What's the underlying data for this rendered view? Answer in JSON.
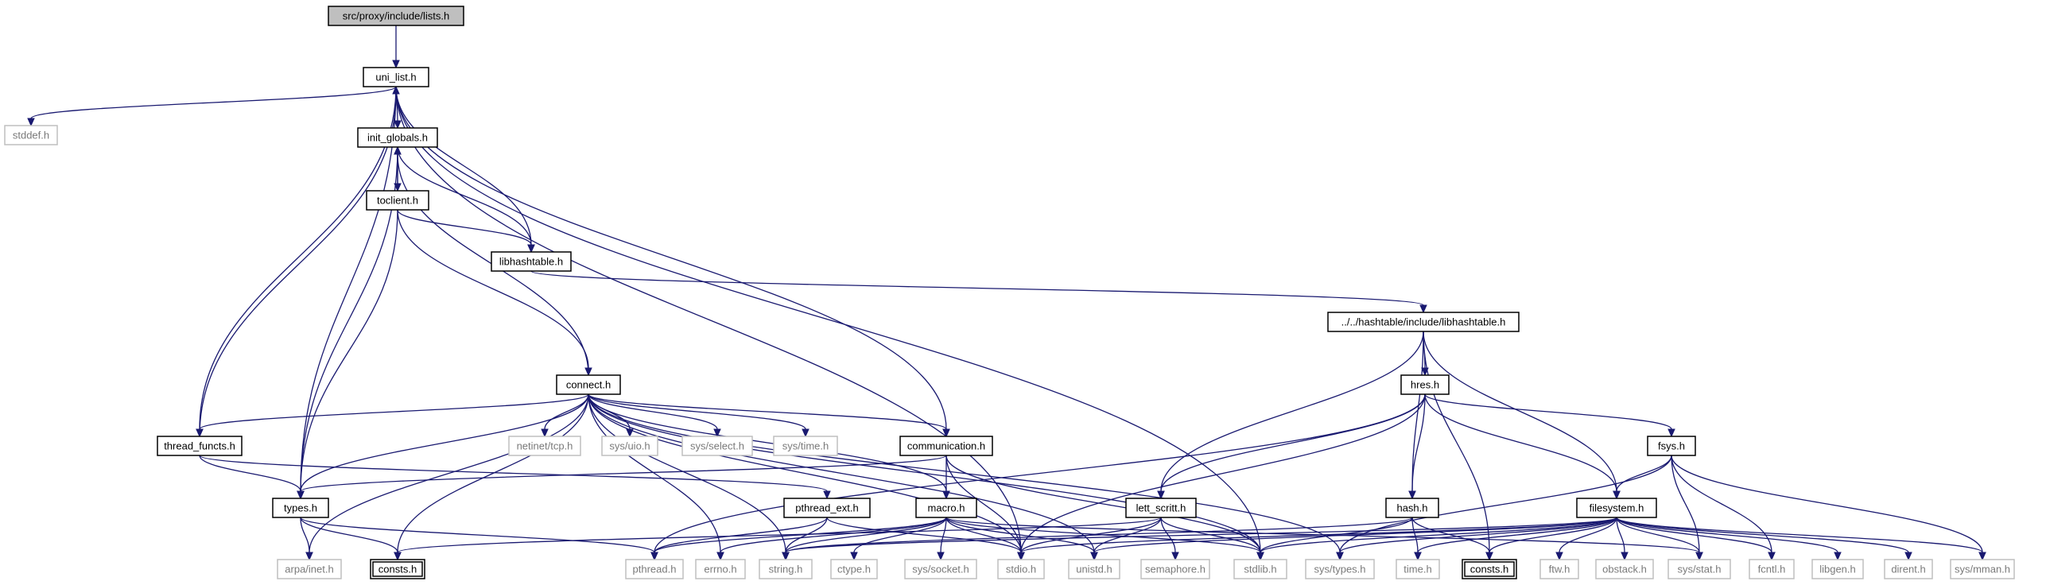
{
  "title": "src/proxy/include/lists.h",
  "colors": {
    "edge": "#191970",
    "root_fill": "#bfbfbf",
    "system_border": "#bfbfbf",
    "system_text": "#7a7a7a"
  },
  "nodes": [
    {
      "id": "lists",
      "label": "src/proxy/include/lists.h",
      "kind": "root"
    },
    {
      "id": "uni_list",
      "label": "uni_list.h",
      "kind": "doc"
    },
    {
      "id": "stddef",
      "label": "stddef.h",
      "kind": "sys"
    },
    {
      "id": "init_globals",
      "label": "init_globals.h",
      "kind": "doc"
    },
    {
      "id": "toclient",
      "label": "toclient.h",
      "kind": "doc"
    },
    {
      "id": "libhashtable",
      "label": "libhashtable.h",
      "kind": "doc"
    },
    {
      "id": "libhashtable_full",
      "label": "../../hashtable/include/libhashtable.h",
      "kind": "doc"
    },
    {
      "id": "connect",
      "label": "connect.h",
      "kind": "doc"
    },
    {
      "id": "netinet_tcp",
      "label": "netinet/tcp.h",
      "kind": "sys"
    },
    {
      "id": "sys_uio",
      "label": "sys/uio.h",
      "kind": "sys"
    },
    {
      "id": "sys_select",
      "label": "sys/select.h",
      "kind": "sys"
    },
    {
      "id": "sys_time",
      "label": "sys/time.h",
      "kind": "sys"
    },
    {
      "id": "communication",
      "label": "communication.h",
      "kind": "doc"
    },
    {
      "id": "thread_functs",
      "label": "thread_functs.h",
      "kind": "doc"
    },
    {
      "id": "types",
      "label": "types.h",
      "kind": "doc"
    },
    {
      "id": "pthread_ext",
      "label": "pthread_ext.h",
      "kind": "doc"
    },
    {
      "id": "macro",
      "label": "macro.h",
      "kind": "doc"
    },
    {
      "id": "lett_scritt",
      "label": "lett_scritt.h",
      "kind": "doc"
    },
    {
      "id": "hres",
      "label": "hres.h",
      "kind": "doc"
    },
    {
      "id": "hash",
      "label": "hash.h",
      "kind": "doc"
    },
    {
      "id": "fsys",
      "label": "fsys.h",
      "kind": "doc"
    },
    {
      "id": "filesystem",
      "label": "filesystem.h",
      "kind": "doc"
    },
    {
      "id": "arpa_inet",
      "label": "arpa/inet.h",
      "kind": "sys"
    },
    {
      "id": "consts_a",
      "label": "consts.h",
      "kind": "dbl"
    },
    {
      "id": "pthread",
      "label": "pthread.h",
      "kind": "sys"
    },
    {
      "id": "errno",
      "label": "errno.h",
      "kind": "sys"
    },
    {
      "id": "string",
      "label": "string.h",
      "kind": "sys"
    },
    {
      "id": "ctype",
      "label": "ctype.h",
      "kind": "sys"
    },
    {
      "id": "sys_socket",
      "label": "sys/socket.h",
      "kind": "sys"
    },
    {
      "id": "stdio",
      "label": "stdio.h",
      "kind": "sys"
    },
    {
      "id": "unistd",
      "label": "unistd.h",
      "kind": "sys"
    },
    {
      "id": "semaphore",
      "label": "semaphore.h",
      "kind": "sys"
    },
    {
      "id": "stdlib",
      "label": "stdlib.h",
      "kind": "sys"
    },
    {
      "id": "sys_types",
      "label": "sys/types.h",
      "kind": "sys"
    },
    {
      "id": "time",
      "label": "time.h",
      "kind": "sys"
    },
    {
      "id": "consts_b",
      "label": "consts.h",
      "kind": "dbl"
    },
    {
      "id": "ftw",
      "label": "ftw.h",
      "kind": "sys"
    },
    {
      "id": "obstack",
      "label": "obstack.h",
      "kind": "sys"
    },
    {
      "id": "sys_stat",
      "label": "sys/stat.h",
      "kind": "sys"
    },
    {
      "id": "fcntl",
      "label": "fcntl.h",
      "kind": "sys"
    },
    {
      "id": "libgen",
      "label": "libgen.h",
      "kind": "sys"
    },
    {
      "id": "dirent",
      "label": "dirent.h",
      "kind": "sys"
    },
    {
      "id": "sys_mman",
      "label": "sys/mman.h",
      "kind": "sys"
    }
  ],
  "edges": [
    [
      "lists",
      "uni_list"
    ],
    [
      "uni_list",
      "stddef"
    ],
    [
      "uni_list",
      "init_globals"
    ],
    [
      "uni_list",
      "libhashtable"
    ],
    [
      "uni_list",
      "thread_functs"
    ],
    [
      "uni_list",
      "types"
    ],
    [
      "uni_list",
      "communication"
    ],
    [
      "uni_list",
      "stdio"
    ],
    [
      "uni_list",
      "stdlib"
    ],
    [
      "init_globals",
      "toclient"
    ],
    [
      "init_globals",
      "libhashtable"
    ],
    [
      "init_globals",
      "types"
    ],
    [
      "toclient",
      "init_globals"
    ],
    [
      "toclient",
      "libhashtable"
    ],
    [
      "toclient",
      "types"
    ],
    [
      "toclient",
      "connect"
    ],
    [
      "libhashtable",
      "libhashtable_full"
    ],
    [
      "libhashtable_full",
      "hres"
    ],
    [
      "libhashtable_full",
      "lett_scritt"
    ],
    [
      "libhashtable_full",
      "hash"
    ],
    [
      "libhashtable_full",
      "consts_b"
    ],
    [
      "libhashtable_full",
      "filesystem"
    ],
    [
      "connect",
      "init_globals"
    ],
    [
      "connect",
      "netinet_tcp"
    ],
    [
      "connect",
      "sys_uio"
    ],
    [
      "connect",
      "sys_select"
    ],
    [
      "connect",
      "sys_time"
    ],
    [
      "connect",
      "communication"
    ],
    [
      "connect",
      "thread_functs"
    ],
    [
      "connect",
      "types"
    ],
    [
      "connect",
      "arpa_inet"
    ],
    [
      "connect",
      "consts_a"
    ],
    [
      "connect",
      "macro"
    ],
    [
      "connect",
      "string"
    ],
    [
      "connect",
      "stdio"
    ],
    [
      "connect",
      "unistd"
    ],
    [
      "connect",
      "stdlib"
    ],
    [
      "connect",
      "sys_types"
    ],
    [
      "connect",
      "errno"
    ],
    [
      "communication",
      "types"
    ],
    [
      "communication",
      "macro"
    ],
    [
      "communication",
      "stdio"
    ],
    [
      "communication",
      "stdlib"
    ],
    [
      "thread_functs",
      "uni_list"
    ],
    [
      "thread_functs",
      "types"
    ],
    [
      "thread_functs",
      "pthread_ext"
    ],
    [
      "types",
      "arpa_inet"
    ],
    [
      "types",
      "consts_a"
    ],
    [
      "types",
      "pthread"
    ],
    [
      "pthread_ext",
      "pthread"
    ],
    [
      "pthread_ext",
      "string"
    ],
    [
      "pthread_ext",
      "stdio"
    ],
    [
      "macro",
      "pthread"
    ],
    [
      "macro",
      "errno"
    ],
    [
      "macro",
      "string"
    ],
    [
      "macro",
      "ctype"
    ],
    [
      "macro",
      "sys_socket"
    ],
    [
      "macro",
      "stdio"
    ],
    [
      "macro",
      "unistd"
    ],
    [
      "macro",
      "stdlib"
    ],
    [
      "macro",
      "sys_stat"
    ],
    [
      "lett_scritt",
      "consts_a"
    ],
    [
      "lett_scritt",
      "stdio"
    ],
    [
      "lett_scritt",
      "unistd"
    ],
    [
      "lett_scritt",
      "semaphore"
    ],
    [
      "lett_scritt",
      "stdlib"
    ],
    [
      "hres",
      "pthread"
    ],
    [
      "hres",
      "lett_scritt"
    ],
    [
      "hres",
      "hash"
    ],
    [
      "hres",
      "filesystem"
    ],
    [
      "hres",
      "fsys"
    ],
    [
      "hres",
      "stdio"
    ],
    [
      "hash",
      "string"
    ],
    [
      "hash",
      "stdlib"
    ],
    [
      "hash",
      "time"
    ],
    [
      "hash",
      "consts_b"
    ],
    [
      "fsys",
      "filesystem"
    ],
    [
      "fsys",
      "sys_types"
    ],
    [
      "fsys",
      "sys_stat"
    ],
    [
      "fsys",
      "fcntl"
    ],
    [
      "fsys",
      "sys_mman"
    ],
    [
      "filesystem",
      "string"
    ],
    [
      "filesystem",
      "stdio"
    ],
    [
      "filesystem",
      "unistd"
    ],
    [
      "filesystem",
      "stdlib"
    ],
    [
      "filesystem",
      "sys_types"
    ],
    [
      "filesystem",
      "time"
    ],
    [
      "filesystem",
      "consts_b"
    ],
    [
      "filesystem",
      "ftw"
    ],
    [
      "filesystem",
      "obstack"
    ],
    [
      "filesystem",
      "sys_stat"
    ],
    [
      "filesystem",
      "fcntl"
    ],
    [
      "filesystem",
      "libgen"
    ],
    [
      "filesystem",
      "dirent"
    ],
    [
      "filesystem",
      "sys_mman"
    ]
  ]
}
